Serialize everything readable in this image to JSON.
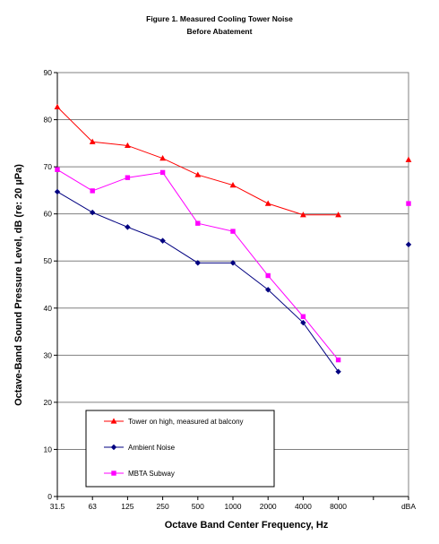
{
  "chart_data": {
    "type": "line",
    "title": "Figure 1. Measured Cooling Tower Noise",
    "subtitle": "Before Abatement",
    "xlabel": "Octave Band Center Frequency, Hz",
    "ylabel": "Octave-Band Sound Pressure Level, dB (re: 20 µPa)",
    "categories": [
      "31.5",
      "63",
      "125",
      "250",
      "500",
      "1000",
      "2000",
      "4000",
      "8000",
      "",
      "dBA"
    ],
    "ylim": [
      0,
      90
    ],
    "yticks": [
      0,
      10,
      20,
      30,
      40,
      50,
      60,
      70,
      80,
      90
    ],
    "grid": "horizontal",
    "legend_position": "lower-left",
    "series": [
      {
        "name": "Tower on high, measured at balcony",
        "color": "#ff0000",
        "marker": "triangle",
        "values": [
          82.7,
          75.3,
          74.5,
          71.8,
          68.3,
          66.1,
          62.2,
          59.8,
          59.8,
          null,
          71.5
        ]
      },
      {
        "name": "Ambient Noise",
        "color": "#000080",
        "marker": "diamond",
        "values": [
          64.7,
          60.3,
          57.2,
          54.3,
          49.6,
          49.6,
          43.9,
          36.9,
          26.5,
          null,
          53.5
        ]
      },
      {
        "name": "MBTA Subway",
        "color": "#ff00ff",
        "marker": "square",
        "values": [
          69.4,
          64.9,
          67.7,
          68.8,
          58.0,
          56.3,
          46.9,
          38.2,
          29.0,
          null,
          62.2
        ]
      }
    ]
  }
}
